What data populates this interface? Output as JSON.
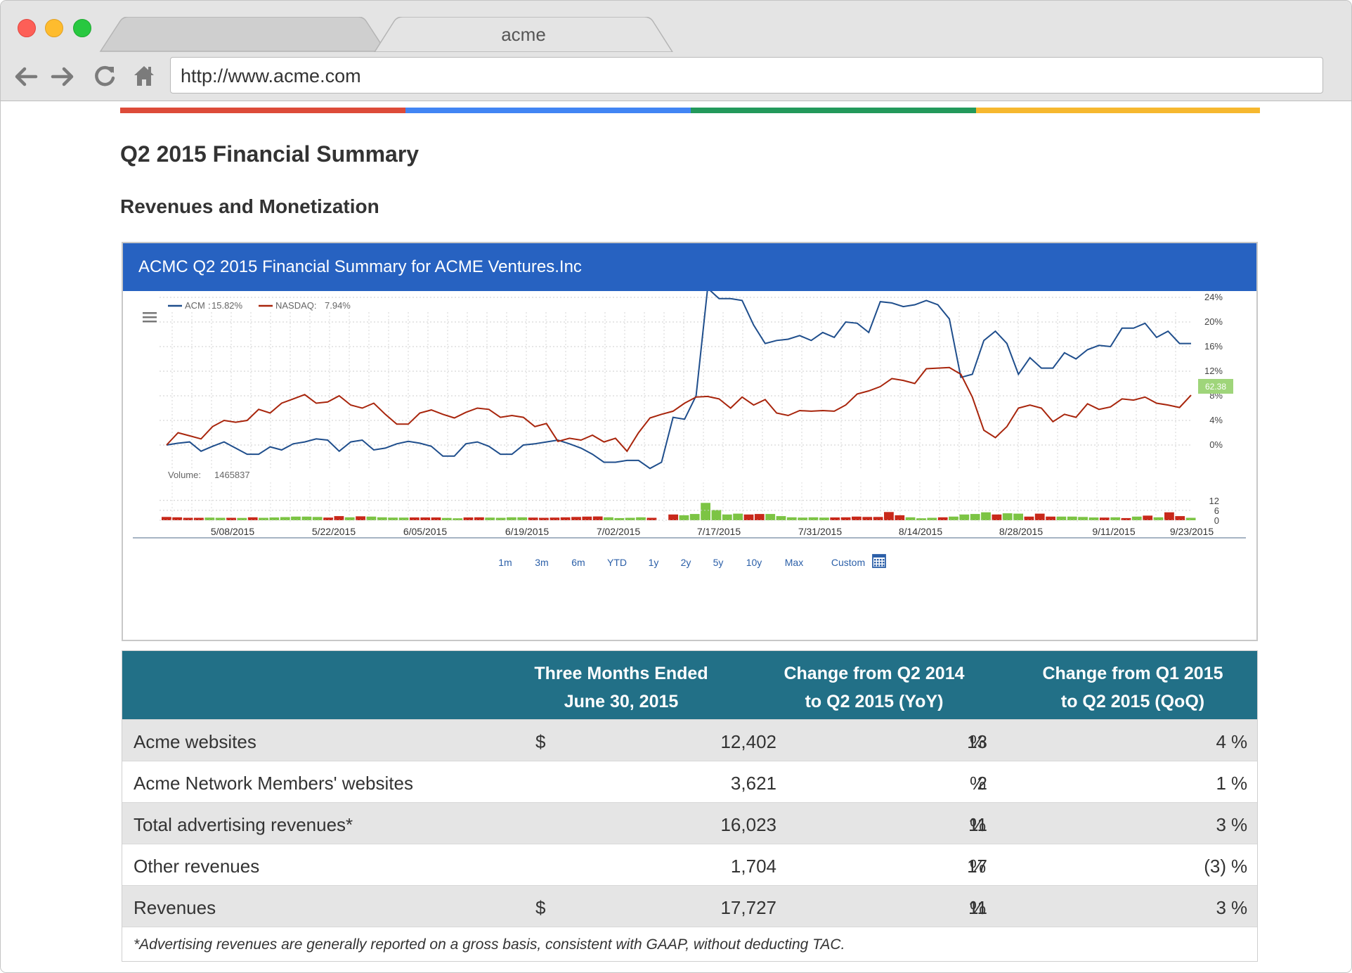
{
  "browser": {
    "tab_active": "acme",
    "url": "http://www.acme.com"
  },
  "page": {
    "title": "Q2 2015 Financial Summary",
    "section": "Revenues and Monetization"
  },
  "colors": {
    "stripe": [
      "#dd4b39",
      "#4285f4",
      "#23995b",
      "#f6b82f"
    ],
    "chart_header": "#2762c1",
    "table_header": "#227087",
    "acm_line": "#1f4e8c",
    "nasdaq_line": "#a8250c",
    "volume_up": "#7cc444",
    "volume_down": "#c8281a"
  },
  "chart": {
    "title": "ACMC Q2 2015 Financial Summary for ACME Ventures.Inc",
    "legend": [
      {
        "name": "ACM",
        "value": "15.82%"
      },
      {
        "name": "NASDAQ:",
        "value": "7.94%"
      }
    ],
    "current_badge": "62.38",
    "volume_label": "Volume:",
    "volume_value": "1465837",
    "ranges": [
      "1m",
      "3m",
      "6m",
      "YTD",
      "1y",
      "2y",
      "5y",
      "10y",
      "Max",
      "Custom"
    ]
  },
  "chart_data": {
    "type": "line",
    "x_ticks": [
      "5/08/2015",
      "5/22/2015",
      "6/05/2015",
      "6/19/2015",
      "7/02/2015",
      "7/17/2015",
      "7/31/2015",
      "8/14/2015",
      "8/28/2015",
      "9/11/2015",
      "9/23/2015"
    ],
    "y_ticks": [
      "24%",
      "20%",
      "16%",
      "12%",
      "8%",
      "4%",
      "0%"
    ],
    "ylim": [
      -3,
      26
    ],
    "series": [
      {
        "name": "ACM",
        "values": [
          0,
          0.3,
          0.5,
          -1,
          -0.2,
          0.5,
          -0.5,
          -1.5,
          -1.5,
          -0.3,
          -0.8,
          0.2,
          0.5,
          1,
          0.8,
          -1,
          0.5,
          0.8,
          -0.8,
          -0.5,
          0.2,
          0.6,
          0.3,
          -0.2,
          -1.8,
          -1.8,
          0.2,
          0.5,
          -0.2,
          -1.5,
          -1.5,
          0,
          0.2,
          0.5,
          0.8,
          0.2,
          -0.5,
          -1.5,
          -2.8,
          -2.8,
          -2.5,
          -2.5,
          -3.8,
          -2.8,
          4.5,
          4.2,
          8,
          25.5,
          23.8,
          23.8,
          23.5,
          19.5,
          16.5,
          17,
          17.2,
          17.8,
          17,
          18.3,
          17.5,
          20,
          19.8,
          18.3,
          23.3,
          23.1,
          22.5,
          22.8,
          23.5,
          22.8,
          20.5,
          11,
          11.5,
          17,
          18.5,
          16.5,
          11.5,
          14.2,
          12.5,
          12.5,
          15,
          14,
          15.5,
          16.2,
          16,
          19,
          19,
          19.8,
          17.5,
          18.5,
          16.5,
          16.5
        ]
      },
      {
        "name": "NASDAQ",
        "values": [
          0,
          2,
          1.5,
          1,
          3,
          4,
          3.7,
          4,
          5.8,
          5.2,
          6.8,
          7.5,
          8.2,
          6.8,
          7,
          8,
          6.5,
          6,
          6.8,
          5,
          3.4,
          3.4,
          5.2,
          5.7,
          5,
          4.4,
          5.3,
          6,
          5.8,
          4.5,
          4.8,
          4.5,
          3,
          3.5,
          0.6,
          1.1,
          0.8,
          1.6,
          0.5,
          1.1,
          -1,
          2,
          4.4,
          5,
          5.5,
          6.8,
          7.8,
          7.9,
          7.5,
          6,
          7.8,
          6.5,
          7.4,
          5.2,
          4.8,
          5.6,
          5.5,
          5.6,
          5.5,
          6.5,
          8.3,
          8.8,
          9.5,
          10.8,
          10.5,
          10,
          12.4,
          12.5,
          12.6,
          11.5,
          7.8,
          2.4,
          1.2,
          3,
          6,
          6.5,
          6,
          3.8,
          5,
          4.5,
          6.7,
          5.8,
          6.2,
          7.5,
          7.3,
          7.8,
          6.8,
          6.5,
          6.1,
          8.1
        ]
      }
    ],
    "volume": {
      "y_ticks": [
        "12",
        "6",
        "0"
      ],
      "ylim": [
        0,
        12
      ],
      "values": [
        2,
        1.8,
        1.5,
        1.5,
        1.6,
        1.5,
        1.5,
        1.4,
        1.8,
        1.5,
        1.7,
        1.9,
        2.2,
        2.2,
        2,
        1.6,
        2.5,
        1.8,
        2.4,
        2.2,
        1.8,
        1.6,
        1.6,
        1.7,
        1.7,
        1.7,
        1.4,
        1.2,
        1.7,
        1.8,
        1.6,
        1.5,
        1.8,
        1.8,
        1.6,
        1.5,
        1.6,
        1.8,
        2,
        2.2,
        2.3,
        1.8,
        1.3,
        1.5,
        1.8,
        1.5,
        2,
        3.5,
        3,
        3.8,
        10.5,
        6.2,
        3.5,
        4,
        3.5,
        3.8,
        3.8,
        2.5,
        1.8,
        1.6,
        1.8,
        1.6,
        1.7,
        1.8,
        2.2,
        2,
        2,
        5,
        3,
        1.8,
        1.2,
        1.5,
        1.8,
        2.2,
        3.5,
        3.8,
        4.8,
        3.5,
        4.2,
        4,
        2.2,
        4,
        2.2,
        2.2,
        2.2,
        2,
        1.7,
        1.6,
        1.8,
        1.3,
        2.2,
        2.8,
        1.8,
        4.8,
        2.5,
        1.5
      ],
      "up": [
        0,
        0,
        0,
        0,
        1,
        1,
        0,
        1,
        0,
        1,
        1,
        1,
        1,
        1,
        1,
        0,
        0,
        1,
        0,
        1,
        1,
        1,
        1,
        0,
        0,
        0,
        1,
        1,
        0,
        0,
        1,
        1,
        1,
        1,
        0,
        0,
        0,
        0,
        0,
        0,
        0,
        1,
        1,
        1,
        1,
        0,
        1,
        0,
        1,
        1,
        1,
        1,
        1,
        1,
        0,
        0,
        1,
        1,
        1,
        1,
        1,
        1,
        0,
        0,
        0,
        0,
        0,
        0,
        0,
        1,
        1,
        1,
        0,
        1,
        1,
        1,
        1,
        0,
        1,
        1,
        0,
        0,
        0,
        1,
        1,
        1,
        1,
        0,
        1,
        0,
        1,
        0,
        1,
        0,
        0,
        1
      ]
    }
  },
  "table": {
    "headers": [
      "",
      "Three Months Ended\nJune 30, 2015",
      "Change from Q2 2014\nto Q2 2015 (YoY)",
      "Change from Q1 2015\nto Q2 2015 (QoQ)"
    ],
    "rows": [
      {
        "label": "Acme websites",
        "currency": "$",
        "amount": "12,402",
        "yoy": "13",
        "yoy_unit": "%",
        "qoq": "4",
        "qoq_unit": "%"
      },
      {
        "label": "Acme Network Members' websites",
        "currency": "",
        "amount": "3,621",
        "yoy": "2",
        "yoy_unit": "%",
        "qoq": "1",
        "qoq_unit": "%"
      },
      {
        "label": "Total advertising revenues*",
        "currency": "",
        "amount": "16,023",
        "yoy": "11",
        "yoy_unit": "%",
        "qoq": "3",
        "qoq_unit": "%"
      },
      {
        "label": "Other revenues",
        "currency": "",
        "amount": "1,704",
        "yoy": "17",
        "yoy_unit": "%",
        "qoq": "(3)",
        "qoq_unit": "%"
      },
      {
        "label": "Revenues",
        "currency": "$",
        "amount": "17,727",
        "yoy": "11",
        "yoy_unit": "%",
        "qoq": "3",
        "qoq_unit": "%"
      }
    ],
    "footnote": "*Advertising revenues are generally reported on a gross basis, consistent with GAAP, without deducting TAC."
  }
}
